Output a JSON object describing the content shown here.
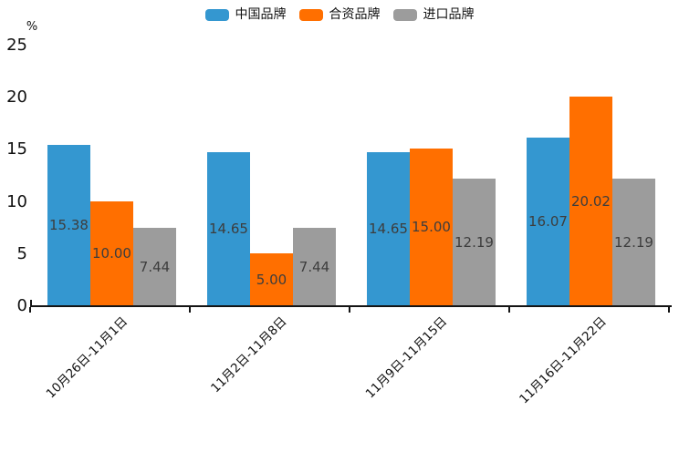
{
  "chart_data": {
    "type": "bar",
    "title": "",
    "xlabel": "",
    "ylabel": "%",
    "ylim": [
      0,
      25
    ],
    "yticks": [
      0,
      5,
      10,
      15,
      20,
      25
    ],
    "grid": false,
    "legend_position": "top-center",
    "categories": [
      "10月26日-11月1日",
      "11月2日-11月8日",
      "11月9日-11月15日",
      "11月16日-11月22日"
    ],
    "series": [
      {
        "name": "中国品牌",
        "color": "#3497d0",
        "values": [
          15.38,
          14.65,
          14.65,
          16.07
        ]
      },
      {
        "name": "合资品牌",
        "color": "#ff6f00",
        "values": [
          10.0,
          5.0,
          15.0,
          20.02
        ]
      },
      {
        "name": "进口品牌",
        "color": "#9c9c9c",
        "values": [
          7.44,
          7.44,
          12.19,
          12.19
        ]
      }
    ],
    "bar_label_color": "#3d3d3d",
    "axis_color": "#141414",
    "value_decimals": 2
  }
}
